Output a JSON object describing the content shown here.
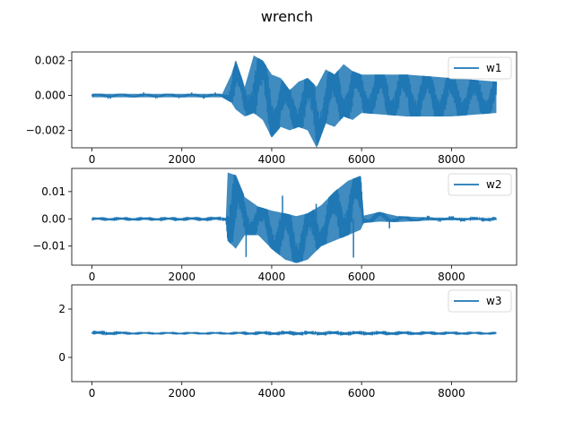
{
  "figure": {
    "title": "wrench"
  },
  "series_color": "#1f77b4",
  "chart_data": [
    {
      "type": "line",
      "name": "w1",
      "title": "",
      "xlabel": "",
      "ylabel": "",
      "xlim": [
        -450,
        9450
      ],
      "ylim": [
        -0.003,
        0.0025
      ],
      "x_ticks": [
        0,
        2000,
        4000,
        6000,
        8000
      ],
      "x_tick_labels": [
        "0",
        "2000",
        "4000",
        "6000",
        "8000"
      ],
      "y_ticks": [
        -0.002,
        0.0,
        0.002
      ],
      "y_tick_labels": [
        "−0.002",
        "0.000",
        "0.002"
      ],
      "legend": {
        "position": "top-right",
        "entries": [
          "w1"
        ]
      },
      "grid": false,
      "series": [
        {
          "name": "w1",
          "envelope": [
            {
              "x": 0,
              "lo": -0.0001,
              "hi": 0.0001
            },
            {
              "x": 1000,
              "lo": -0.0001,
              "hi": 0.0001
            },
            {
              "x": 2000,
              "lo": -0.0001,
              "hi": 0.0001
            },
            {
              "x": 2900,
              "lo": -0.0001,
              "hi": 0.0001
            },
            {
              "x": 3100,
              "lo": -0.0004,
              "hi": 0.0012
            },
            {
              "x": 3200,
              "lo": -0.0008,
              "hi": 0.002
            },
            {
              "x": 3400,
              "lo": -0.0012,
              "hi": 0.0005
            },
            {
              "x": 3600,
              "lo": -0.001,
              "hi": 0.0023
            },
            {
              "x": 3800,
              "lo": -0.0014,
              "hi": 0.002
            },
            {
              "x": 4000,
              "lo": -0.0024,
              "hi": 0.0012
            },
            {
              "x": 4200,
              "lo": -0.0018,
              "hi": 0.001
            },
            {
              "x": 4400,
              "lo": -0.002,
              "hi": 0.0003
            },
            {
              "x": 4600,
              "lo": -0.0018,
              "hi": 0.0008
            },
            {
              "x": 4800,
              "lo": -0.002,
              "hi": 0.001
            },
            {
              "x": 5000,
              "lo": -0.003,
              "hi": 0.0005
            },
            {
              "x": 5200,
              "lo": -0.0016,
              "hi": 0.0015
            },
            {
              "x": 5400,
              "lo": -0.0018,
              "hi": 0.0012
            },
            {
              "x": 5600,
              "lo": -0.0012,
              "hi": 0.0018
            },
            {
              "x": 5800,
              "lo": -0.0014,
              "hi": 0.0014
            },
            {
              "x": 6000,
              "lo": -0.001,
              "hi": 0.0012
            },
            {
              "x": 7000,
              "lo": -0.0012,
              "hi": 0.0012
            },
            {
              "x": 8000,
              "lo": -0.0012,
              "hi": 0.001
            },
            {
              "x": 9000,
              "lo": -0.001,
              "hi": 0.0008
            }
          ]
        }
      ]
    },
    {
      "type": "line",
      "name": "w2",
      "title": "",
      "xlabel": "",
      "ylabel": "",
      "xlim": [
        -450,
        9450
      ],
      "ylim": [
        -0.017,
        0.0185
      ],
      "x_ticks": [
        0,
        2000,
        4000,
        6000,
        8000
      ],
      "x_tick_labels": [
        "0",
        "2000",
        "4000",
        "6000",
        "8000"
      ],
      "y_ticks": [
        -0.01,
        0.0,
        0.01
      ],
      "y_tick_labels": [
        "−0.01",
        "0.00",
        "0.01"
      ],
      "legend": {
        "position": "top-right",
        "entries": [
          "w2"
        ]
      },
      "grid": false,
      "series": [
        {
          "name": "w2",
          "envelope": [
            {
              "x": 0,
              "lo": -0.0003,
              "hi": 0.0002
            },
            {
              "x": 1500,
              "lo": -0.0003,
              "hi": 0.0002
            },
            {
              "x": 2980,
              "lo": -0.0003,
              "hi": 0.0003
            },
            {
              "x": 3020,
              "lo": -0.008,
              "hi": 0.017
            },
            {
              "x": 3200,
              "lo": -0.011,
              "hi": 0.016
            },
            {
              "x": 3400,
              "lo": -0.006,
              "hi": 0.008
            },
            {
              "x": 3700,
              "lo": -0.006,
              "hi": 0.0045
            },
            {
              "x": 4000,
              "lo": -0.011,
              "hi": 0.003
            },
            {
              "x": 4300,
              "lo": -0.015,
              "hi": 0.002
            },
            {
              "x": 4550,
              "lo": -0.0162,
              "hi": 0.001
            },
            {
              "x": 4800,
              "lo": -0.015,
              "hi": 0.002
            },
            {
              "x": 5100,
              "lo": -0.01,
              "hi": 0.005
            },
            {
              "x": 5400,
              "lo": -0.008,
              "hi": 0.01
            },
            {
              "x": 5700,
              "lo": -0.006,
              "hi": 0.014
            },
            {
              "x": 5980,
              "lo": -0.004,
              "hi": 0.0158
            },
            {
              "x": 6050,
              "lo": -0.0015,
              "hi": 0.0012
            },
            {
              "x": 6400,
              "lo": -0.001,
              "hi": 0.0025
            },
            {
              "x": 6800,
              "lo": -0.0012,
              "hi": 0.001
            },
            {
              "x": 7500,
              "lo": -0.0006,
              "hi": 0.0005
            },
            {
              "x": 9000,
              "lo": -0.0004,
              "hi": 0.0002
            }
          ],
          "spikes": [
            {
              "x": 3430,
              "y": -0.014
            },
            {
              "x": 4240,
              "y": 0.0085
            },
            {
              "x": 4990,
              "y": 0.0055
            },
            {
              "x": 5820,
              "y": -0.0142
            },
            {
              "x": 6620,
              "y": -0.0035
            }
          ]
        }
      ]
    },
    {
      "type": "line",
      "name": "w3",
      "title": "",
      "xlabel": "",
      "ylabel": "",
      "xlim": [
        -450,
        9450
      ],
      "ylim": [
        -1.0,
        3.0
      ],
      "x_ticks": [
        0,
        2000,
        4000,
        6000,
        8000
      ],
      "x_tick_labels": [
        "0",
        "2000",
        "4000",
        "6000",
        "8000"
      ],
      "y_ticks": [
        0,
        2
      ],
      "y_tick_labels": [
        "0",
        "2"
      ],
      "legend": {
        "position": "top-right",
        "entries": [
          "w3"
        ]
      },
      "grid": false,
      "series": [
        {
          "name": "w3",
          "envelope": [
            {
              "x": 0,
              "lo": 0.97,
              "hi": 1.05
            },
            {
              "x": 1000,
              "lo": 0.98,
              "hi": 1.02
            },
            {
              "x": 3000,
              "lo": 0.98,
              "hi": 1.02
            },
            {
              "x": 4300,
              "lo": 0.97,
              "hi": 1.04
            },
            {
              "x": 6000,
              "lo": 0.97,
              "hi": 1.04
            },
            {
              "x": 9000,
              "lo": 0.98,
              "hi": 1.02
            }
          ]
        }
      ]
    }
  ]
}
